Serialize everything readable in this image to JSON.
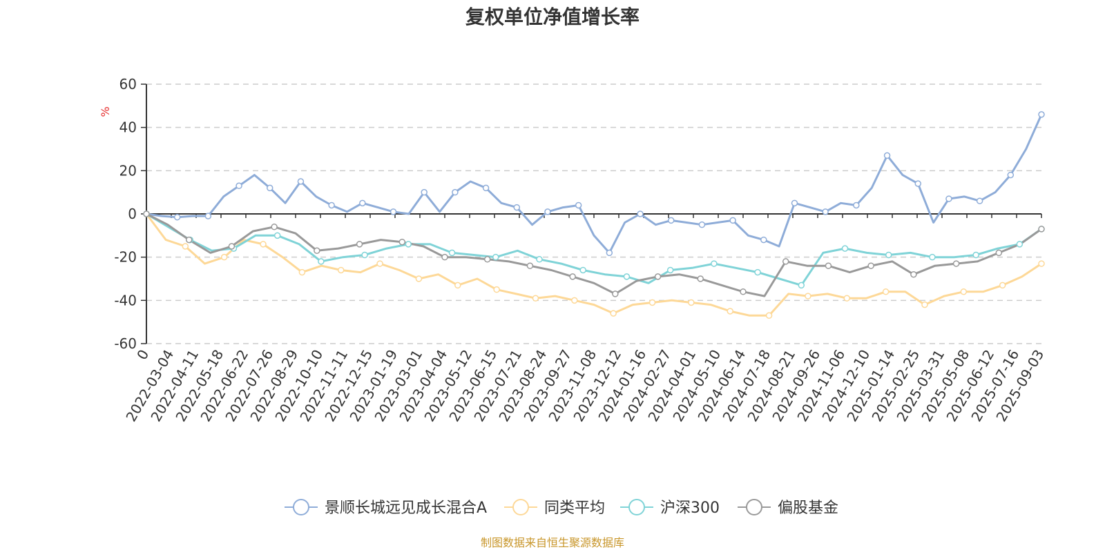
{
  "chart_data": {
    "type": "line",
    "title": "复权单位净值增长率",
    "ylabel": "%",
    "ylim": [
      -60,
      60
    ],
    "yticks": [
      60,
      40,
      20,
      0,
      -20,
      -40,
      -60
    ],
    "grid": true,
    "legend_position": "bottom",
    "x_tick_labels": [
      "0",
      "2022-03-04",
      "2022-04-11",
      "2022-05-18",
      "2022-06-22",
      "2022-07-26",
      "2022-08-29",
      "2022-10-10",
      "2022-11-11",
      "2022-12-15",
      "2023-01-19",
      "2023-03-01",
      "2023-04-04",
      "2023-05-12",
      "2023-06-15",
      "2023-07-21",
      "2023-08-24",
      "2023-09-27",
      "2023-11-08",
      "2023-12-12",
      "2024-01-16",
      "2024-02-27",
      "2024-04-01",
      "2024-05-10",
      "2024-06-14",
      "2024-07-18",
      "2024-08-21",
      "2024-09-26",
      "2024-11-06",
      "2024-12-10",
      "2025-01-14",
      "2025-02-25",
      "2025-03-31",
      "2025-05-08",
      "2025-06-12",
      "2025-07-16",
      "2025-09-03"
    ],
    "series": [
      {
        "name": "景顺长城远见成长混合A",
        "color": "#8eacd8",
        "values": [
          0,
          -1,
          -1.5,
          -1,
          -1,
          8,
          13,
          18,
          12,
          5,
          15,
          8,
          4,
          1,
          5,
          3,
          1,
          0,
          10,
          1,
          10,
          15,
          12,
          5,
          3,
          -5,
          1,
          3,
          4,
          -10,
          -18,
          -4,
          0,
          -5,
          -3,
          -4,
          -5,
          -4,
          -3,
          -10,
          -12,
          -15,
          5,
          3,
          1,
          5,
          4,
          12,
          27,
          18,
          14,
          -4,
          7,
          8,
          6,
          10,
          18,
          30,
          46
        ]
      },
      {
        "name": "同类平均",
        "color": "#fdd897",
        "values": [
          0,
          -12,
          -15,
          -23,
          -20,
          -12,
          -14,
          -20,
          -27,
          -24,
          -26,
          -27,
          -23,
          -26,
          -30,
          -28,
          -33,
          -30,
          -35,
          -37,
          -39,
          -38,
          -40,
          -42,
          -46,
          -42,
          -41,
          -40,
          -41,
          -42,
          -45,
          -47,
          -47,
          -37,
          -38,
          -37,
          -39,
          -39,
          -36,
          -36,
          -42,
          -38,
          -36,
          -36,
          -33,
          -29,
          -23
        ]
      },
      {
        "name": "沪深300",
        "color": "#7fd3d7",
        "values": [
          0,
          -6,
          -12,
          -17,
          -16,
          -10,
          -10,
          -14,
          -22,
          -20,
          -19,
          -16,
          -14,
          -14,
          -18,
          -19,
          -20,
          -17,
          -21,
          -23,
          -26,
          -28,
          -29,
          -32,
          -26,
          -25,
          -23,
          -25,
          -27,
          -30,
          -33,
          -18,
          -16,
          -18,
          -19,
          -18,
          -20,
          -20,
          -19,
          -16,
          -14,
          -7
        ]
      },
      {
        "name": "偏股基金",
        "color": "#999999",
        "values": [
          0,
          -5,
          -12,
          -18,
          -15,
          -8,
          -6,
          -9,
          -17,
          -16,
          -14,
          -12,
          -13,
          -15,
          -20,
          -20,
          -21,
          -22,
          -24,
          -26,
          -29,
          -32,
          -37,
          -31,
          -29,
          -28,
          -30,
          -33,
          -36,
          -38,
          -22,
          -24,
          -24,
          -27,
          -24,
          -22,
          -28,
          -24,
          -23,
          -22,
          -18,
          -14,
          -7
        ]
      }
    ]
  },
  "source_note": "制图数据来自恒生聚源数据库",
  "colors": {
    "axis": "#333333",
    "grid": "#cccccc",
    "unit": "#e62e2e",
    "source": "#c8962a"
  }
}
